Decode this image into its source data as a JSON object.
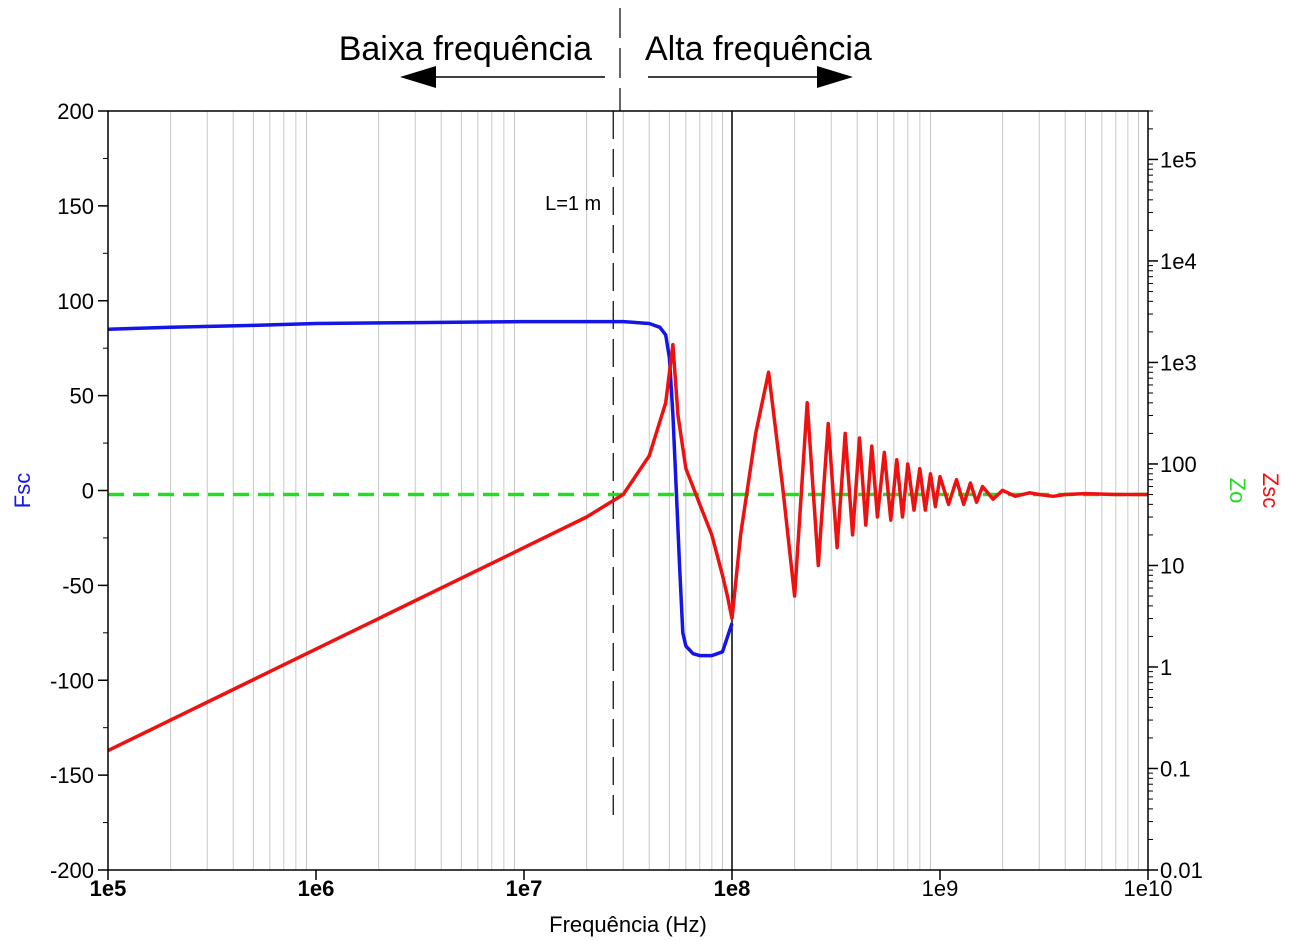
{
  "chart_data": {
    "type": "line",
    "title": "",
    "xlabel": "Frequência (Hz)",
    "x_scale": "log",
    "xlim": [
      100000,
      10000000000
    ],
    "x_tick_labels": [
      "1e5",
      "1e6",
      "1e7",
      "1e8",
      "1e9",
      "1e10"
    ],
    "x_tick_values": [
      100000,
      1000000,
      10000000,
      100000000,
      1000000000,
      10000000000
    ],
    "x_tick_bold": [
      true,
      true,
      true,
      true,
      false,
      false
    ],
    "y_left": {
      "label": "Fsc",
      "color": "#1515e8",
      "lim": [
        -200,
        200
      ],
      "tick_values": [
        200,
        150,
        100,
        50,
        0,
        -50,
        -100,
        -150,
        -200
      ],
      "tick_labels": [
        "200",
        "150",
        "100",
        "50",
        "0",
        "-50",
        "-100",
        "-150",
        "-200"
      ]
    },
    "y_right": {
      "scale": "log",
      "lim": [
        0.01,
        300000
      ],
      "tick_values": [
        100000,
        10000,
        1000,
        100,
        10,
        1,
        0.1,
        0.01
      ],
      "tick_labels": [
        "1e5",
        "1e4",
        "1e3",
        "100",
        "10",
        "1",
        "0.1",
        "0.01"
      ],
      "labels": [
        {
          "text": "Zo",
          "color": "#22dd22"
        },
        {
          "text": "Zsc",
          "color": "#ee1111"
        }
      ]
    },
    "grid": {
      "vertical_minor": true,
      "horizontal": false
    },
    "series": [
      {
        "name": "Fsc",
        "axis": "left",
        "color": "#1515e8",
        "style": "solid",
        "x": [
          100000,
          200000,
          500000,
          1000000,
          3000000,
          10000000,
          20000000,
          30000000,
          40000000,
          45000000,
          48000000,
          50000000,
          52000000,
          54000000,
          56000000,
          58000000,
          60000000,
          65000000,
          70000000,
          80000000,
          90000000,
          100000000
        ],
        "y": [
          85,
          86,
          87,
          88,
          88.5,
          89,
          89,
          89,
          88,
          86,
          82,
          70,
          40,
          0,
          -40,
          -75,
          -82,
          -86,
          -87,
          -87,
          -85,
          -70
        ]
      },
      {
        "name": "Zo",
        "axis": "right",
        "color": "#22dd22",
        "style": "dashed",
        "x": [
          100000,
          10000000000
        ],
        "y": [
          50,
          50
        ]
      },
      {
        "name": "Zsc",
        "axis": "right",
        "color": "#ee1111",
        "style": "solid",
        "x": [
          100000,
          1000000,
          10000000,
          20000000,
          30000000,
          40000000,
          48000000,
          52000000,
          55000000,
          60000000,
          70000000,
          80000000,
          90000000,
          95000000,
          100000000,
          110000000,
          130000000,
          150000000,
          175000000,
          200000000,
          230000000,
          260000000,
          290000000,
          320000000,
          350000000,
          380000000,
          410000000,
          440000000,
          470000000,
          500000000,
          540000000,
          580000000,
          620000000,
          660000000,
          700000000,
          750000000,
          800000000,
          850000000,
          900000000,
          950000000,
          1000000000,
          1100000000,
          1200000000,
          1300000000,
          1400000000,
          1500000000,
          1600000000,
          1800000000,
          2000000000,
          2300000000,
          2700000000,
          3000000000,
          3500000000,
          4000000000,
          5000000000,
          7000000000,
          10000000000
        ],
        "y": [
          0.15,
          1.5,
          15,
          30,
          50,
          120,
          400,
          1500,
          300,
          90,
          40,
          20,
          8,
          5,
          3,
          20,
          200,
          800,
          60,
          5,
          400,
          10,
          250,
          15,
          200,
          20,
          180,
          25,
          150,
          30,
          130,
          28,
          110,
          30,
          100,
          35,
          90,
          35,
          80,
          38,
          75,
          40,
          70,
          40,
          65,
          42,
          60,
          45,
          55,
          48,
          52,
          50,
          48,
          50,
          51,
          50,
          50
        ]
      }
    ],
    "annotations": [
      {
        "text": "L=1 m",
        "x": 30000000,
        "style": "dashed-vertical-line"
      }
    ],
    "vertical_lines": [
      {
        "x": 100000000,
        "style": "solid",
        "color": "#000000"
      }
    ]
  },
  "banner": {
    "left_label": "Baixa frequência",
    "right_label": "Alta frequência"
  }
}
